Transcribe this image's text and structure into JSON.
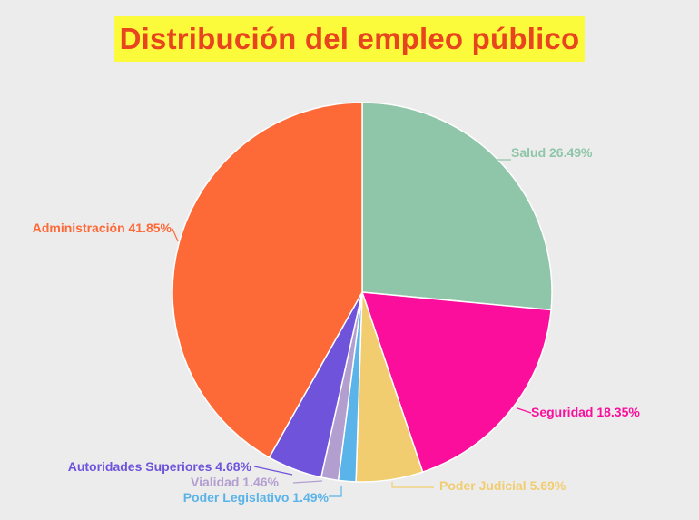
{
  "title": "Distribución del empleo público",
  "chart_data": {
    "type": "pie",
    "title": "Distribución del empleo público",
    "slices": [
      {
        "label": "Salud",
        "value": 26.49,
        "text": "Salud 26.49%",
        "color": "#8fc5a8"
      },
      {
        "label": "Seguridad",
        "value": 18.35,
        "text": "Seguridad 18.35%",
        "color": "#fb0e9c"
      },
      {
        "label": "Poder Judicial",
        "value": 5.69,
        "text": "Poder Judicial 5.69%",
        "color": "#f1cd70"
      },
      {
        "label": "Poder Legislativo",
        "value": 1.49,
        "text": "Poder Legislativo 1.49%",
        "color": "#5ab3e9"
      },
      {
        "label": "Vialidad",
        "value": 1.46,
        "text": "Vialidad 1.46%",
        "color": "#b39ed0"
      },
      {
        "label": "Autoridades Superiores",
        "value": 4.68,
        "text": "Autoridades Superiores 4.68%",
        "color": "#6f53db"
      },
      {
        "label": "Administración",
        "value": 41.85,
        "text": "Administración 41.85%",
        "color": "#fd6937"
      }
    ]
  }
}
